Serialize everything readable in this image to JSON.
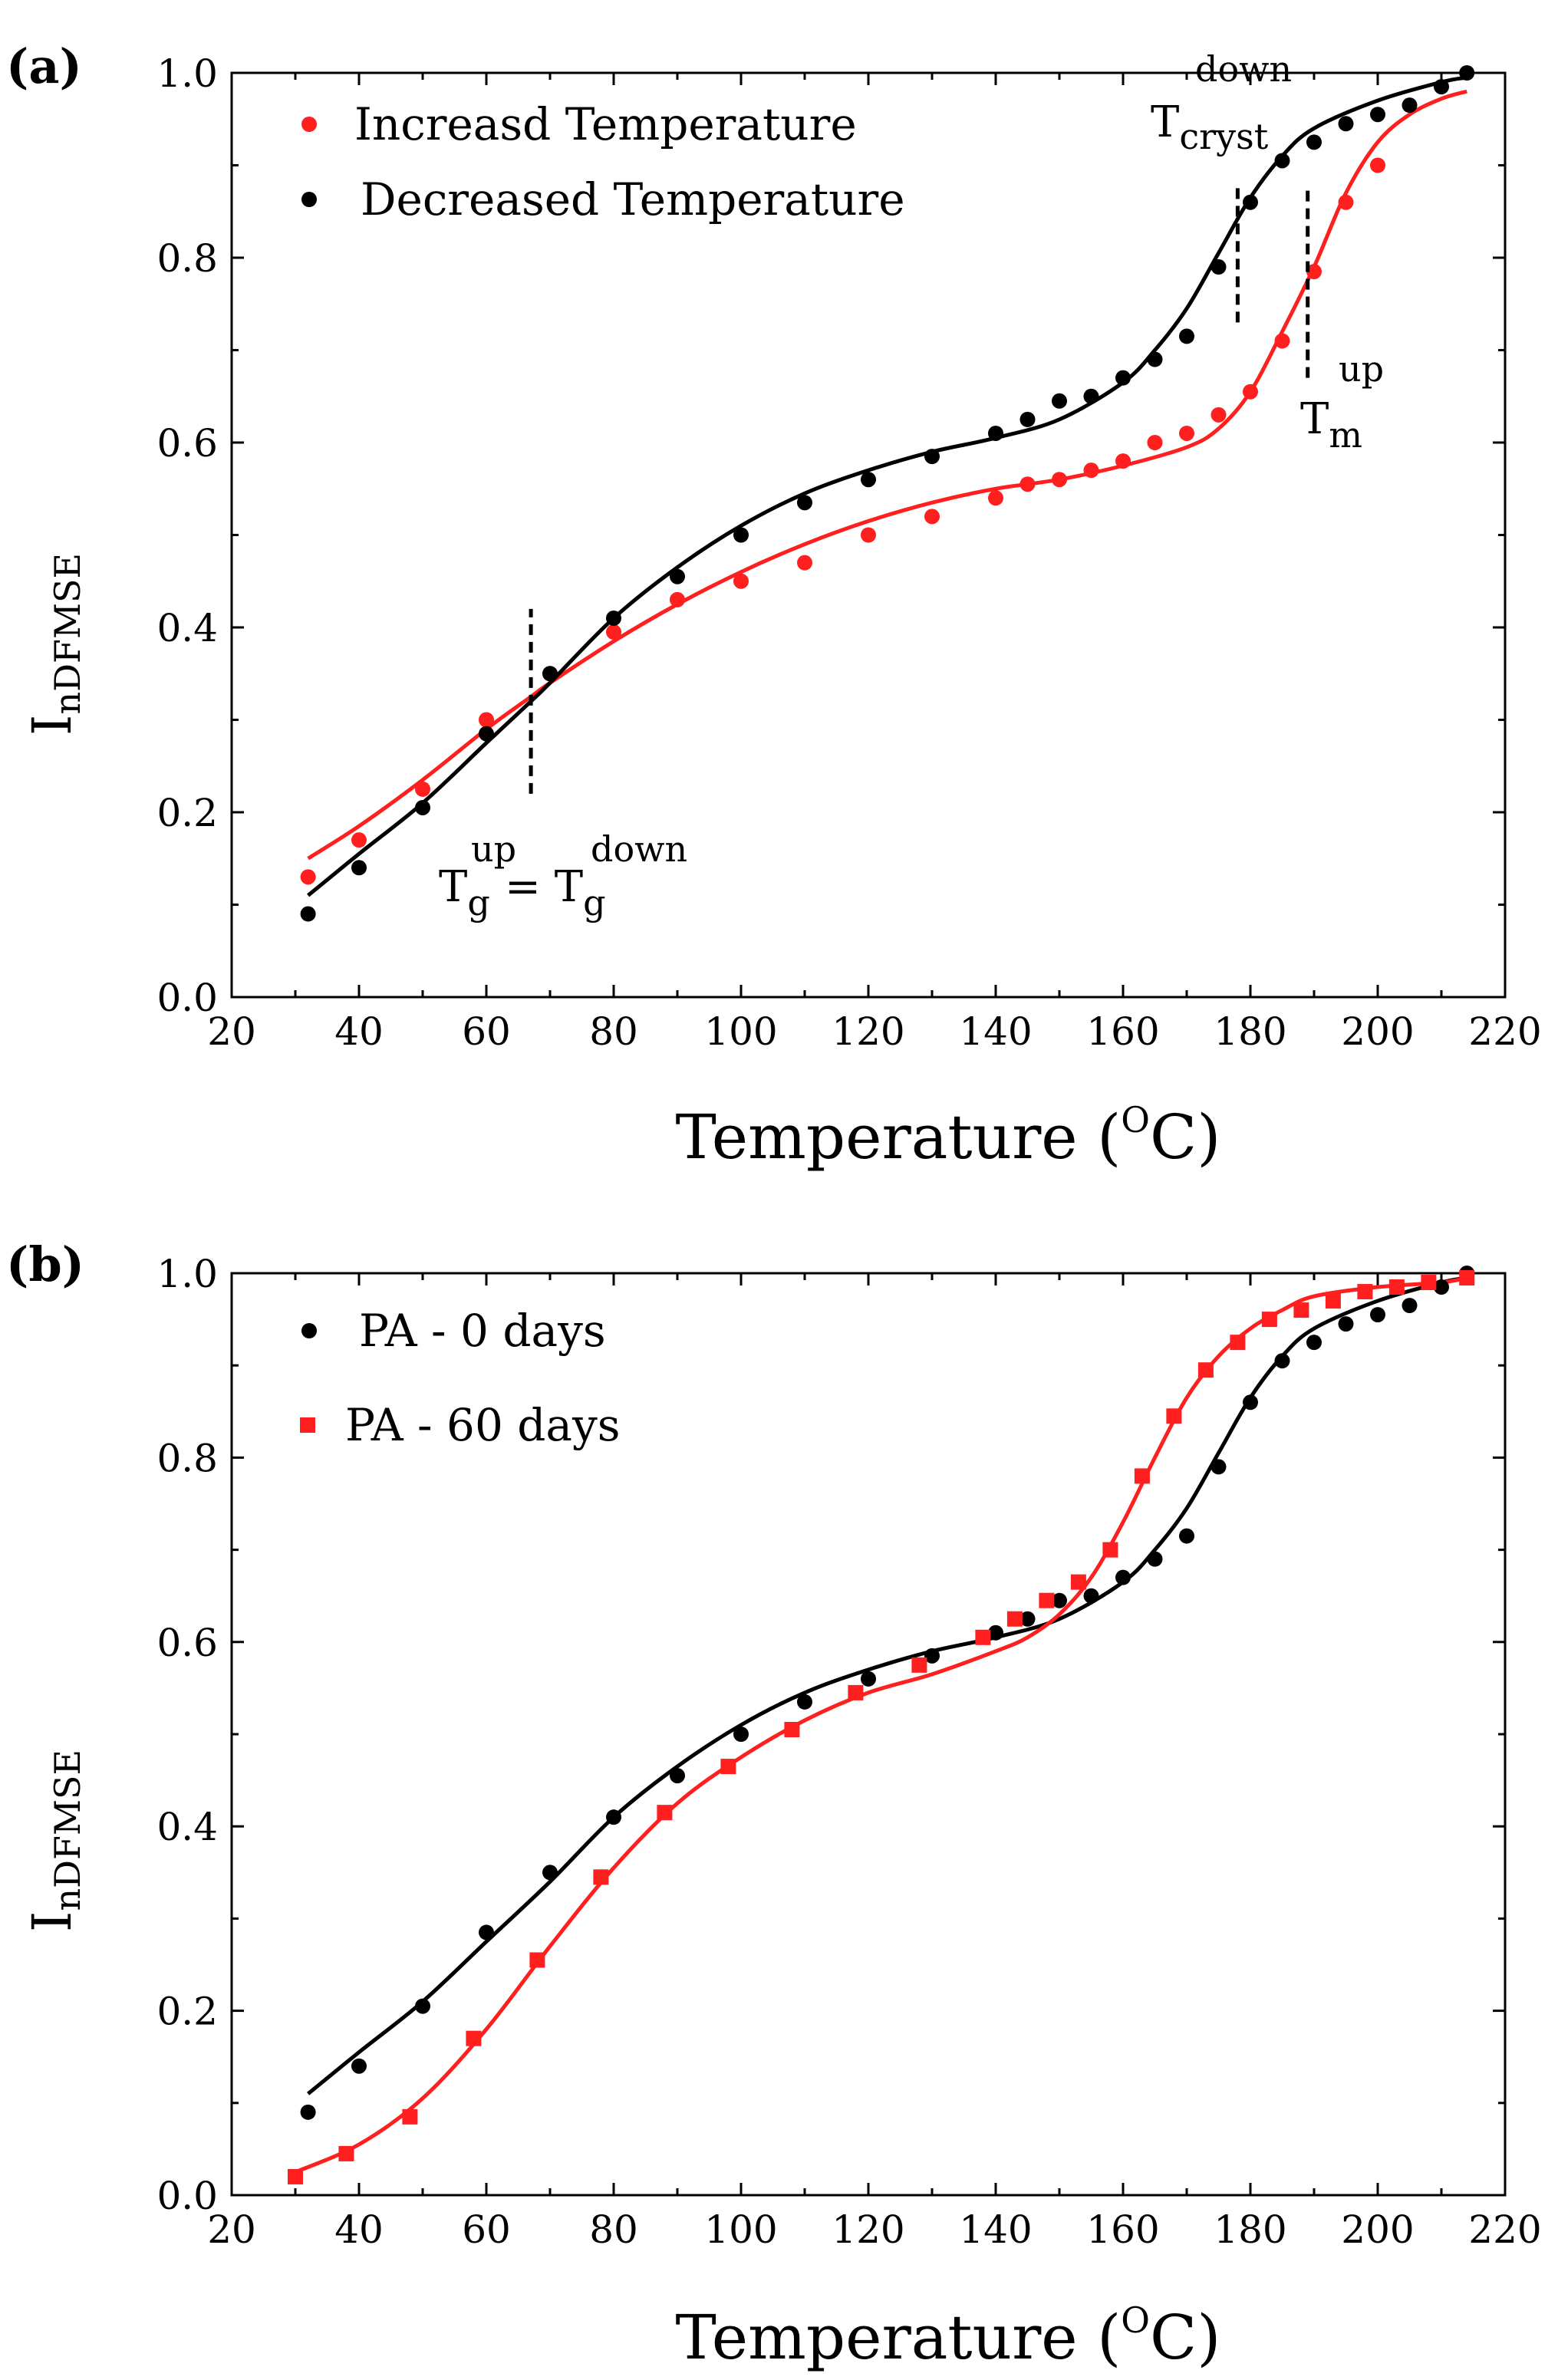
{
  "chart_data": [
    {
      "type": "scatter",
      "panel_label": "(a)",
      "xlabel": "Temperature",
      "xunit_prefix": " (",
      "xunit_sup": "O",
      "xunit_suffix": "C)",
      "ylabel_main": "I",
      "ylabel_sub": "nDFMSE",
      "xlim": [
        20,
        220
      ],
      "ylim": [
        0.0,
        1.0
      ],
      "xticks": [
        20,
        40,
        60,
        80,
        100,
        120,
        140,
        160,
        180,
        200,
        220
      ],
      "xtick_labels": [
        "20",
        "40",
        "60",
        "80",
        "100",
        "120",
        "140",
        "160",
        "180",
        "200",
        "220"
      ],
      "yticks": [
        0.0,
        0.2,
        0.4,
        0.6,
        0.8,
        1.0
      ],
      "ytick_labels": [
        "0.0",
        "0.2",
        "0.4",
        "0.6",
        "0.8",
        "1.0"
      ],
      "legend_position": "top-left",
      "series": [
        {
          "name": "Increasd Temperature",
          "color": "#ff1f1f",
          "marker": "circle",
          "x": [
            32,
            40,
            50,
            60,
            70,
            80,
            90,
            100,
            110,
            120,
            130,
            140,
            145,
            150,
            155,
            160,
            165,
            170,
            175,
            180,
            185,
            190,
            195,
            200
          ],
          "y": [
            0.13,
            0.17,
            0.225,
            0.3,
            0.35,
            0.395,
            0.43,
            0.45,
            0.47,
            0.5,
            0.52,
            0.54,
            0.555,
            0.56,
            0.57,
            0.58,
            0.6,
            0.61,
            0.63,
            0.655,
            0.71,
            0.785,
            0.86,
            0.9
          ],
          "fit_x": [
            32,
            40,
            50,
            60,
            67,
            70,
            80,
            90,
            100,
            110,
            120,
            130,
            140,
            150,
            160,
            170,
            175,
            180,
            185,
            190,
            195,
            200,
            205,
            210,
            214
          ],
          "fit_y": [
            0.15,
            0.185,
            0.235,
            0.29,
            0.325,
            0.34,
            0.385,
            0.425,
            0.46,
            0.49,
            0.515,
            0.535,
            0.55,
            0.56,
            0.575,
            0.595,
            0.615,
            0.655,
            0.72,
            0.79,
            0.87,
            0.925,
            0.955,
            0.972,
            0.98
          ]
        },
        {
          "name": "Decreased Temperature",
          "color": "#000000",
          "marker": "circle",
          "x": [
            32,
            40,
            50,
            60,
            70,
            80,
            90,
            100,
            110,
            120,
            130,
            140,
            145,
            150,
            155,
            160,
            165,
            170,
            175,
            180,
            185,
            190,
            195,
            200,
            205,
            210,
            214
          ],
          "y": [
            0.09,
            0.14,
            0.205,
            0.285,
            0.35,
            0.41,
            0.455,
            0.5,
            0.535,
            0.56,
            0.585,
            0.61,
            0.625,
            0.645,
            0.65,
            0.67,
            0.69,
            0.715,
            0.79,
            0.86,
            0.905,
            0.925,
            0.945,
            0.955,
            0.965,
            0.985,
            1.0
          ],
          "fit_x": [
            32,
            40,
            50,
            60,
            67,
            70,
            80,
            90,
            100,
            110,
            120,
            130,
            140,
            150,
            160,
            165,
            170,
            175,
            180,
            185,
            190,
            200,
            210,
            214
          ],
          "fit_y": [
            0.11,
            0.155,
            0.21,
            0.275,
            0.32,
            0.34,
            0.41,
            0.465,
            0.51,
            0.545,
            0.57,
            0.59,
            0.605,
            0.625,
            0.665,
            0.7,
            0.745,
            0.805,
            0.865,
            0.91,
            0.94,
            0.97,
            0.99,
            0.995
          ]
        }
      ],
      "annotations": [
        {
          "main": "T",
          "sub": "cryst",
          "sup": "down",
          "x": 178
        },
        {
          "main": "T",
          "sub": "m",
          "sup": "up",
          "x": 189
        },
        {
          "main": "T",
          "sub": "g",
          "sup": "up",
          "eq": "= ",
          "main2": "T",
          "sub2": "g",
          "sup2": "down",
          "x": 67
        }
      ]
    },
    {
      "type": "scatter",
      "panel_label": "(b)",
      "xlabel": "Temperature",
      "xunit_prefix": " (",
      "xunit_sup": "O",
      "xunit_suffix": "C)",
      "ylabel_main": "I",
      "ylabel_sub": "nDFMSE",
      "xlim": [
        20,
        220
      ],
      "ylim": [
        0.0,
        1.0
      ],
      "xticks": [
        20,
        40,
        60,
        80,
        100,
        120,
        140,
        160,
        180,
        200,
        220
      ],
      "xtick_labels": [
        "20",
        "40",
        "60",
        "80",
        "100",
        "120",
        "140",
        "160",
        "180",
        "200",
        "220"
      ],
      "yticks": [
        0.0,
        0.2,
        0.4,
        0.6,
        0.8,
        1.0
      ],
      "ytick_labels": [
        "0.0",
        "0.2",
        "0.4",
        "0.6",
        "0.8",
        "1.0"
      ],
      "legend_position": "top-left",
      "series": [
        {
          "name": "PA - 0 days",
          "color": "#000000",
          "marker": "circle",
          "x": [
            32,
            40,
            50,
            60,
            70,
            80,
            90,
            100,
            110,
            120,
            130,
            140,
            145,
            150,
            155,
            160,
            165,
            170,
            175,
            180,
            185,
            190,
            195,
            200,
            205,
            210,
            214
          ],
          "y": [
            0.09,
            0.14,
            0.205,
            0.285,
            0.35,
            0.41,
            0.455,
            0.5,
            0.535,
            0.56,
            0.585,
            0.61,
            0.625,
            0.645,
            0.65,
            0.67,
            0.69,
            0.715,
            0.79,
            0.86,
            0.905,
            0.925,
            0.945,
            0.955,
            0.965,
            0.985,
            1.0
          ],
          "fit_x": [
            32,
            40,
            50,
            60,
            70,
            80,
            90,
            100,
            110,
            120,
            130,
            140,
            150,
            160,
            165,
            170,
            175,
            180,
            185,
            190,
            200,
            210,
            214
          ],
          "fit_y": [
            0.11,
            0.155,
            0.21,
            0.275,
            0.34,
            0.41,
            0.465,
            0.51,
            0.545,
            0.57,
            0.59,
            0.605,
            0.625,
            0.665,
            0.7,
            0.745,
            0.805,
            0.865,
            0.91,
            0.94,
            0.97,
            0.99,
            0.995
          ]
        },
        {
          "name": "PA - 60 days",
          "color": "#ff1f1f",
          "marker": "square",
          "x": [
            30,
            38,
            48,
            58,
            68,
            78,
            88,
            98,
            108,
            118,
            128,
            138,
            143,
            148,
            153,
            158,
            163,
            168,
            173,
            178,
            183,
            188,
            193,
            198,
            203,
            208,
            214
          ],
          "y": [
            0.02,
            0.045,
            0.085,
            0.17,
            0.255,
            0.345,
            0.415,
            0.465,
            0.505,
            0.545,
            0.575,
            0.605,
            0.625,
            0.645,
            0.665,
            0.7,
            0.78,
            0.845,
            0.895,
            0.925,
            0.95,
            0.96,
            0.97,
            0.98,
            0.985,
            0.99,
            0.995
          ],
          "fit_x": [
            30,
            40,
            50,
            60,
            70,
            80,
            90,
            100,
            110,
            120,
            130,
            140,
            145,
            150,
            155,
            160,
            165,
            170,
            175,
            180,
            185,
            190,
            200,
            210,
            214
          ],
          "fit_y": [
            0.025,
            0.055,
            0.105,
            0.18,
            0.27,
            0.355,
            0.425,
            0.475,
            0.515,
            0.545,
            0.565,
            0.59,
            0.605,
            0.63,
            0.67,
            0.73,
            0.8,
            0.865,
            0.91,
            0.94,
            0.96,
            0.975,
            0.985,
            0.99,
            0.995
          ]
        }
      ]
    }
  ]
}
